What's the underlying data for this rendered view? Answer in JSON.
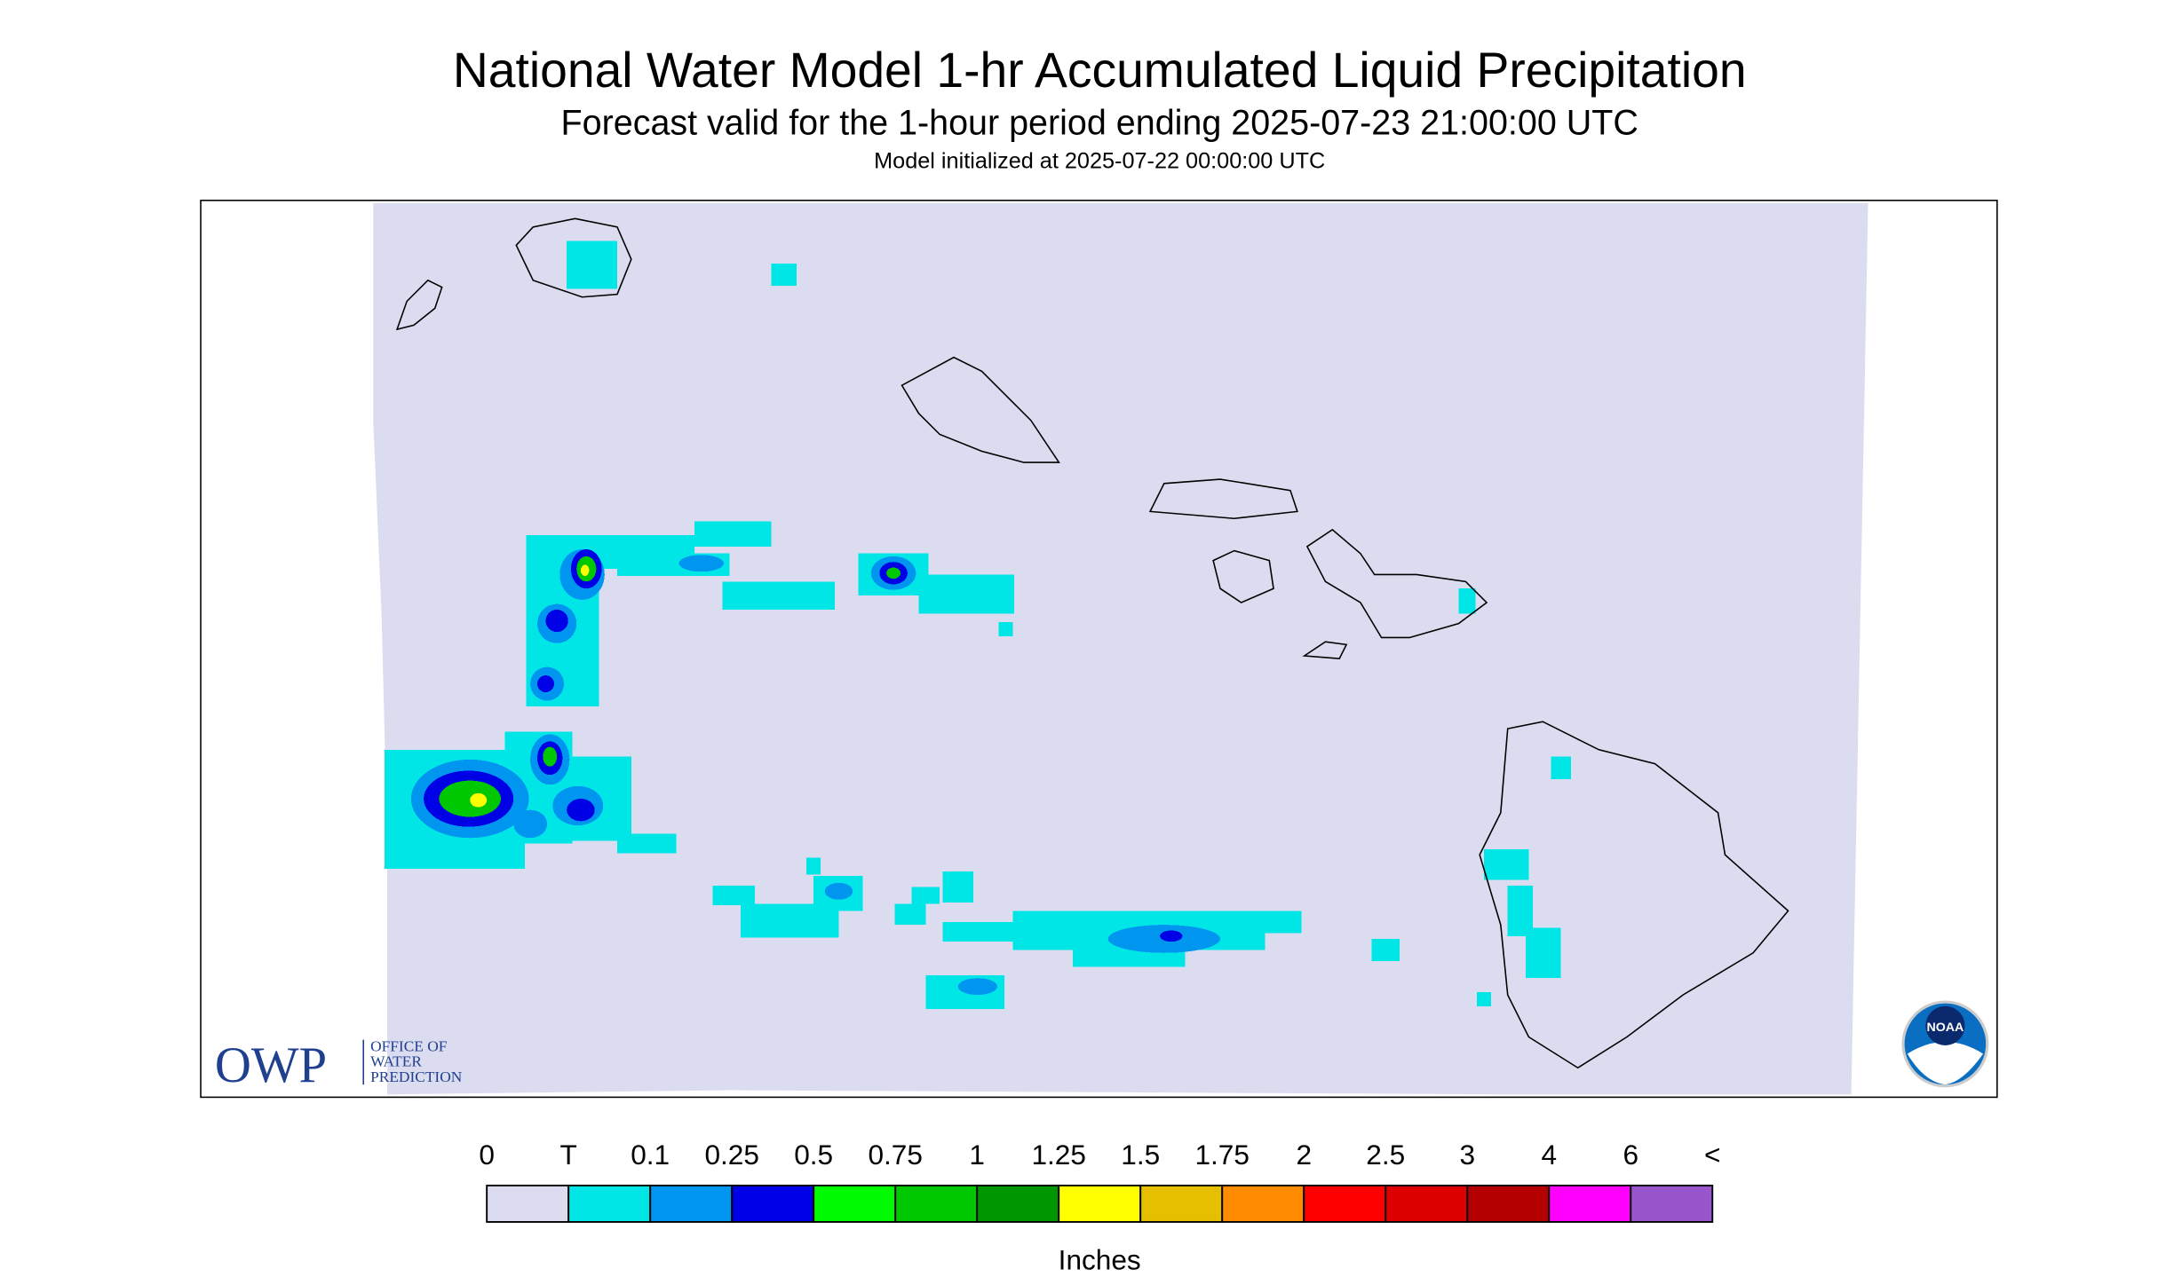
{
  "header": {
    "title": "National Water Model 1-hr Accumulated Liquid Precipitation",
    "subtitle": "Forecast valid for the 1-hour period ending 2025-07-23 21:00:00 UTC",
    "initialized": "Model initialized at 2025-07-22 00:00:00 UTC"
  },
  "logos": {
    "owp": "OWP",
    "owp_lines": [
      "OFFICE OF",
      "WATER",
      "PREDICTION"
    ],
    "noaa": "NOAA"
  },
  "legend": {
    "labels": [
      "0",
      "T",
      "0.1",
      "0.25",
      "0.5",
      "0.75",
      "1",
      "1.25",
      "1.5",
      "1.75",
      "2",
      "2.5",
      "3",
      "4",
      "6",
      "<"
    ],
    "colors": [
      "#dcdcf0",
      "#00e6e6",
      "#0096f0",
      "#0000e6",
      "#00fa00",
      "#00c800",
      "#009600",
      "#ffff00",
      "#e6bf00",
      "#ff8c00",
      "#ff0000",
      "#dc0000",
      "#b40000",
      "#ff00ff",
      "#9955cc"
    ],
    "unit": "Inches"
  }
}
